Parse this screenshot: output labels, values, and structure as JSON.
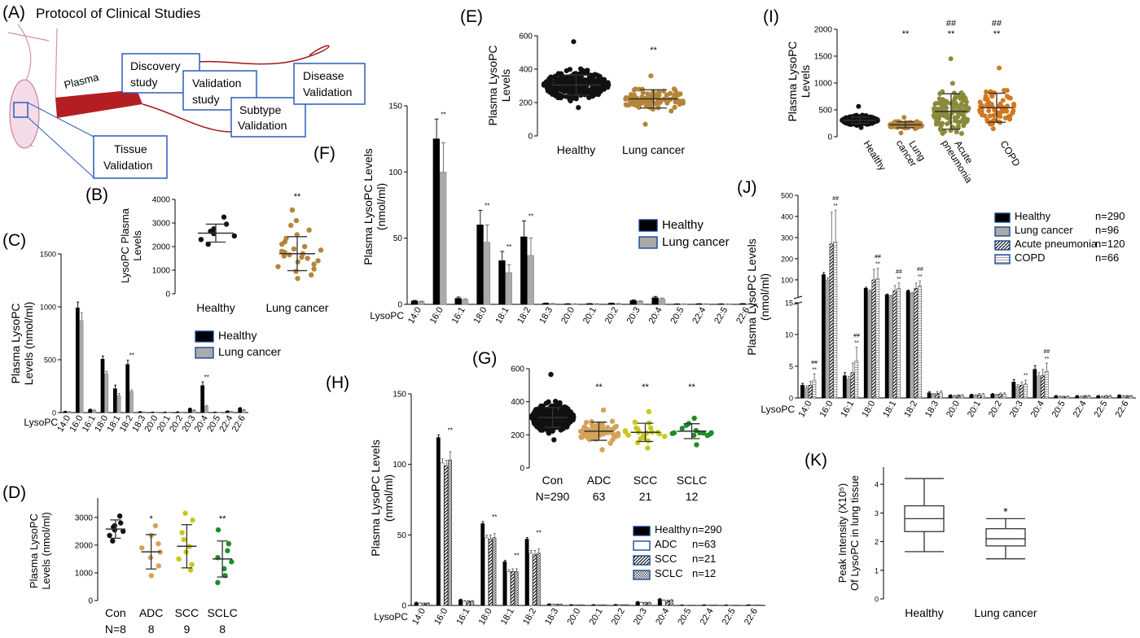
{
  "panels": {
    "A": {
      "label": "(A)",
      "title": "Protocol of Clinical Studies",
      "plasma_label": "Plasma",
      "boxes": {
        "discovery": [
          "Discovery",
          "study"
        ],
        "validation": [
          "Validation",
          "study"
        ],
        "subtype": [
          "Subtype",
          "Validation"
        ],
        "disease": [
          "Disease",
          "Validation"
        ],
        "tissue": [
          "Tissue",
          "Validation"
        ]
      }
    },
    "B": {
      "label": "(B)"
    },
    "C": {
      "label": "(C)"
    },
    "D": {
      "label": "(D)"
    },
    "E": {
      "label": "(E)"
    },
    "F": {
      "label": "(F)"
    },
    "G": {
      "label": "(G)"
    },
    "H": {
      "label": "(H)"
    },
    "I": {
      "label": "(I)"
    },
    "J": {
      "label": "(J)"
    },
    "K": {
      "label": "(K)"
    }
  },
  "colors": {
    "healthy": "#000000",
    "healthy_dot": "#111111",
    "lung_cancer_bar": "#aaaaaa",
    "lung_cancer_dot": "#b5853a",
    "adc": "#d4a25a",
    "scc": "#c8c81a",
    "sclc": "#1e8c2a",
    "pneumonia": "#8a8a3a",
    "copd": "#d2781e",
    "protocol_box": "#2b5fb5",
    "protocol_curve": "#a3161c",
    "vessel": "#b84a6b"
  },
  "chart_data": [
    {
      "panel": "B",
      "type": "scatter",
      "ylabel": "LysoPC Plasma Levels",
      "categories": [
        "Healthy",
        "Lung cancer"
      ],
      "yticks": [
        0,
        1000,
        2000,
        3000,
        4000
      ],
      "ylim": [
        0,
        4000
      ],
      "groups": [
        {
          "mean": 2570,
          "sd": 380,
          "sig": "",
          "points": [
            2100,
            2300,
            2450,
            2550,
            2650,
            2750,
            2950,
            3250
          ]
        },
        {
          "mean": 1700,
          "sd": 720,
          "sig": "**",
          "points": [
            650,
            800,
            950,
            1050,
            1150,
            1250,
            1350,
            1400,
            1500,
            1550,
            1600,
            1650,
            1700,
            1750,
            1800,
            1850,
            1900,
            2000,
            2100,
            2200,
            2350,
            2500,
            2700,
            2900,
            3100,
            3550
          ]
        }
      ]
    },
    {
      "panel": "C",
      "type": "bar",
      "ylabel": "Plasma LysoPC Levels (nmol/ml)",
      "xlabel": "LysoPC",
      "yticks": [
        0,
        500,
        1000,
        1500
      ],
      "ylim": [
        0,
        1500
      ],
      "categories": [
        "14:0",
        "16:0",
        "16:1",
        "18:0",
        "18:1",
        "18:2",
        "18:3",
        "20:0",
        "20:1",
        "20:2",
        "20:3",
        "20:4",
        "20:5",
        "22:4",
        "22:6"
      ],
      "series": [
        {
          "name": "Healthy",
          "values": [
            10,
            990,
            28,
            505,
            225,
            455,
            8,
            4,
            4,
            6,
            38,
            255,
            4,
            14,
            42
          ],
          "err": [
            3,
            55,
            5,
            30,
            35,
            40,
            2,
            1,
            1,
            2,
            5,
            35,
            1,
            3,
            6
          ]
        },
        {
          "name": "Lung cancer",
          "values": [
            8,
            870,
            22,
            365,
            160,
            200,
            5,
            3,
            3,
            4,
            22,
            60,
            3,
            10,
            25
          ],
          "err": [
            2,
            75,
            4,
            25,
            20,
            15,
            1,
            1,
            1,
            1,
            4,
            8,
            1,
            2,
            4
          ]
        }
      ],
      "sig": [
        {
          "i": 5,
          "text": "**"
        },
        {
          "i": 11,
          "text": "**"
        }
      ]
    },
    {
      "panel": "D",
      "type": "scatter",
      "ylabel": "Plasma LysoPC Levels (nmol/ml)",
      "categories": [
        "Con",
        "ADC",
        "SCC",
        "SCLC"
      ],
      "counts": [
        "N=8",
        "8",
        "9",
        "8"
      ],
      "yticks": [
        0,
        1000,
        2000,
        3000
      ],
      "ylim": [
        0,
        3700
      ],
      "groups": [
        {
          "mean": 2580,
          "sd": 330,
          "sig": "",
          "color_key": "healthy_dot",
          "points": [
            2150,
            2350,
            2500,
            2550,
            2650,
            2700,
            2800,
            3050
          ]
        },
        {
          "mean": 1760,
          "sd": 620,
          "sig": "*",
          "color_key": "adc",
          "points": [
            900,
            1250,
            1550,
            1750,
            1900,
            2050,
            2350,
            2700
          ]
        },
        {
          "mean": 1960,
          "sd": 780,
          "sig": "",
          "color_key": "scc",
          "points": [
            1100,
            1300,
            1500,
            1750,
            1950,
            2200,
            2450,
            2900,
            3150
          ]
        },
        {
          "mean": 1500,
          "sd": 650,
          "sig": "**",
          "color_key": "sclc",
          "points": [
            650,
            900,
            1150,
            1400,
            1550,
            1800,
            2050,
            2550
          ]
        }
      ]
    },
    {
      "panel": "E",
      "type": "scatter",
      "ylabel": "Plasma LysoPC Levels",
      "categories": [
        "Healthy",
        "Lung cancer"
      ],
      "yticks": [
        0,
        200,
        400,
        600
      ],
      "ylim": [
        0,
        600
      ],
      "groups": [
        {
          "mean": 305,
          "sd": 60,
          "sig": "",
          "n": 290,
          "min": 170,
          "max": 565
        },
        {
          "mean": 222,
          "sd": 55,
          "sig": "**",
          "n": 96,
          "min": 70,
          "max": 360
        }
      ]
    },
    {
      "panel": "F",
      "type": "bar",
      "ylabel": "Plasma LysoPC Levels (nmol/ml)",
      "xlabel": "LysoPC",
      "yticks": [
        0,
        50,
        100,
        150
      ],
      "ylim": [
        0,
        150
      ],
      "categories": [
        "14:0",
        "16:0",
        "16:1",
        "18:0",
        "18:1",
        "18:2",
        "18:3",
        "20:0",
        "20:1",
        "20:2",
        "20:3",
        "20:4",
        "20:5",
        "22:4",
        "22:5",
        "22:6"
      ],
      "series": [
        {
          "name": "Healthy",
          "values": [
            2.5,
            125,
            4.5,
            60,
            33,
            51,
            0.8,
            0.4,
            0.5,
            0.8,
            2.8,
            5,
            0.3,
            0.4,
            0.3,
            0.5
          ],
          "err": [
            0.5,
            15,
            1,
            11,
            7,
            12,
            0.2,
            0.1,
            0.1,
            0.2,
            0.5,
            1,
            0.1,
            0.1,
            0.1,
            0.1
          ]
        },
        {
          "name": "Lung cancer",
          "values": [
            2,
            100,
            3.5,
            47,
            24,
            37,
            0.6,
            0.3,
            0.4,
            0.6,
            2.2,
            4,
            0.2,
            0.3,
            0.2,
            0.4
          ],
          "err": [
            0.4,
            22,
            0.8,
            13,
            6,
            13,
            0.1,
            0.1,
            0.1,
            0.1,
            0.4,
            0.8,
            0.1,
            0.1,
            0.1,
            0.1
          ]
        }
      ],
      "sig": [
        {
          "i": 1,
          "text": "**"
        },
        {
          "i": 3,
          "text": "**"
        },
        {
          "i": 4,
          "text": "**"
        },
        {
          "i": 5,
          "text": "**"
        }
      ]
    },
    {
      "panel": "G",
      "type": "scatter",
      "categories": [
        "Con",
        "ADC",
        "SCC",
        "SCLC"
      ],
      "counts": [
        "N=290",
        "63",
        "21",
        "12"
      ],
      "yticks": [
        0,
        200,
        400,
        600
      ],
      "ylim": [
        0,
        600
      ],
      "groups": [
        {
          "mean": 305,
          "sd": 60,
          "sig": "",
          "n": 290,
          "min": 170,
          "max": 565,
          "color_key": "healthy_dot"
        },
        {
          "mean": 222,
          "sd": 55,
          "sig": "**",
          "n": 63,
          "min": 110,
          "max": 350,
          "color_key": "adc"
        },
        {
          "mean": 215,
          "sd": 55,
          "sig": "**",
          "n": 21,
          "min": 120,
          "max": 340,
          "color_key": "scc"
        },
        {
          "mean": 222,
          "sd": 45,
          "sig": "**",
          "n": 12,
          "min": 140,
          "max": 300,
          "color_key": "sclc"
        }
      ]
    },
    {
      "panel": "H",
      "type": "bar",
      "ylabel": "Plasma LysoPC Levels (nmol/ml)",
      "xlabel": "LysoPC",
      "yticks": [
        0,
        50,
        100,
        150
      ],
      "ylim": [
        0,
        150
      ],
      "categories": [
        "14:0",
        "16:0",
        "16:1",
        "18:0",
        "18:1",
        "18:2",
        "18:3",
        "20:0",
        "20:1",
        "20:2",
        "20:3",
        "20:4",
        "20:5",
        "22:4",
        "22:5",
        "22:6"
      ],
      "series": [
        {
          "name": "Healthy",
          "count": "n=290",
          "values": [
            2,
            119,
            4,
            58,
            31,
            47,
            1,
            0.5,
            0.5,
            0.6,
            2.5,
            4.5,
            0.3,
            0.4,
            0.3,
            0.4
          ],
          "err": [
            0.3,
            2,
            0.5,
            1.5,
            1,
            1.2,
            0.2,
            0.1,
            0.1,
            0.1,
            0.3,
            0.5,
            0.1,
            0.1,
            0.1,
            0.1
          ]
        },
        {
          "name": "ADC",
          "count": "n=63",
          "values": [
            1.6,
            101,
            3,
            48,
            24,
            37,
            0.8,
            0.4,
            0.4,
            0.5,
            2,
            3.5,
            0.2,
            0.3,
            0.2,
            0.3
          ],
          "err": [
            0.3,
            3,
            0.4,
            2,
            1.5,
            2,
            0.2,
            0.1,
            0.1,
            0.1,
            0.3,
            0.5,
            0.1,
            0.1,
            0.1,
            0.1
          ]
        },
        {
          "name": "SCC",
          "count": "n=21",
          "values": [
            1.5,
            99,
            3,
            47,
            24,
            36,
            0.8,
            0.4,
            0.4,
            0.5,
            2,
            3.3,
            0.2,
            0.3,
            0.2,
            0.3
          ],
          "err": [
            0.3,
            4,
            0.4,
            3,
            2,
            3,
            0.2,
            0.1,
            0.1,
            0.1,
            0.3,
            0.6,
            0.1,
            0.1,
            0.1,
            0.1
          ]
        },
        {
          "name": "SCLC",
          "count": "n=12",
          "values": [
            1.6,
            103,
            3,
            48,
            24,
            37,
            0.8,
            0.4,
            0.4,
            0.5,
            2,
            3.6,
            0.2,
            0.3,
            0.2,
            0.3
          ],
          "err": [
            0.3,
            6,
            0.5,
            3,
            2,
            3,
            0.2,
            0.1,
            0.1,
            0.1,
            0.3,
            0.6,
            0.1,
            0.1,
            0.1,
            0.1
          ]
        }
      ],
      "sig": [
        {
          "i": 1,
          "text": "**"
        },
        {
          "i": 3,
          "text": "**"
        },
        {
          "i": 4,
          "text": "**"
        },
        {
          "i": 5,
          "text": "**"
        }
      ]
    },
    {
      "panel": "I",
      "type": "scatter",
      "ylabel": "Plasma LysoPC Levels",
      "categories": [
        "Healthy",
        "Lung cancer",
        "Acute pneumonia",
        "COPD"
      ],
      "yticks": [
        0,
        500,
        1000,
        1500,
        2000
      ],
      "ylim": [
        0,
        2000
      ],
      "groups": [
        {
          "mean": 305,
          "sd": 60,
          "sig": "",
          "sig2": "",
          "n": 290,
          "min": 170,
          "max": 565,
          "color_key": "healthy_dot"
        },
        {
          "mean": 222,
          "sd": 55,
          "sig": "**",
          "sig2": "",
          "n": 96,
          "min": 70,
          "max": 360,
          "color_key": "lung_cancer_dot"
        },
        {
          "mean": 470,
          "sd": 330,
          "sig": "**",
          "sig2": "##",
          "n": 120,
          "min": 60,
          "max": 1450,
          "color_key": "pneumonia"
        },
        {
          "mean": 540,
          "sd": 270,
          "sig": "**",
          "sig2": "##",
          "n": 66,
          "min": 150,
          "max": 1280,
          "color_key": "copd"
        }
      ]
    },
    {
      "panel": "J",
      "type": "bar",
      "ylabel": "Plasma LysoPC Levels (nmol/ml)",
      "xlabel": "LysoPC",
      "yticks_low": [
        0,
        5,
        10,
        15
      ],
      "yticks_high": [
        100,
        200,
        300,
        400,
        500
      ],
      "categories": [
        "14:0",
        "16:0",
        "16:1",
        "18:0",
        "18:1",
        "18:2",
        "18:3",
        "20:0",
        "20:1",
        "20:2",
        "20:3",
        "20:4",
        "20:5",
        "22:4",
        "22:5",
        "22:6"
      ],
      "series": [
        {
          "name": "Healthy",
          "count": "n=290",
          "values": [
            2,
            125,
            3.5,
            60,
            30,
            48,
            0.8,
            0.4,
            0.5,
            0.6,
            2.5,
            4.5,
            0.3,
            0.3,
            0.3,
            0.4
          ],
          "err": [
            0.3,
            10,
            0.5,
            5,
            3,
            4,
            0.2,
            0.1,
            0.1,
            0.1,
            0.4,
            0.6,
            0.1,
            0.1,
            0.1,
            0.1
          ]
        },
        {
          "name": "Lung cancer",
          "count": "n=96",
          "values": [
            1.6,
            100,
            3,
            47,
            24,
            37,
            0.6,
            0.3,
            0.4,
            0.5,
            1.8,
            3.5,
            0.2,
            0.2,
            0.2,
            0.3
          ],
          "err": [
            0.3,
            10,
            0.4,
            5,
            3,
            4,
            0.1,
            0.1,
            0.1,
            0.1,
            0.3,
            0.5,
            0.1,
            0.1,
            0.1,
            0.1
          ]
        },
        {
          "name": "Acute pneumonia",
          "count": "n=120",
          "values": [
            2,
            270,
            4,
            100,
            48,
            60,
            0.7,
            0.4,
            0.5,
            0.6,
            2,
            3.5,
            0.2,
            0.3,
            0.3,
            0.3
          ],
          "err": [
            0.6,
            150,
            1.5,
            50,
            25,
            25,
            0.3,
            0.1,
            0.2,
            0.2,
            0.5,
            1,
            0.1,
            0.1,
            0.1,
            0.1
          ]
        },
        {
          "name": "COPD",
          "count": "n=66",
          "values": [
            2.8,
            280,
            5.8,
            105,
            60,
            70,
            0.8,
            0.4,
            0.5,
            0.6,
            2.2,
            4.2,
            0.2,
            0.3,
            0.3,
            0.3
          ],
          "err": [
            1,
            150,
            2.2,
            50,
            25,
            25,
            0.3,
            0.1,
            0.2,
            0.2,
            0.6,
            1.3,
            0.1,
            0.1,
            0.1,
            0.1
          ]
        }
      ],
      "sig": [
        {
          "i": 0,
          "text": "**",
          "text2": "##"
        },
        {
          "i": 1,
          "text": "**",
          "text2": "##"
        },
        {
          "i": 2,
          "text": "**",
          "text2": "##"
        },
        {
          "i": 3,
          "text": "**",
          "text2": "##"
        },
        {
          "i": 4,
          "text": "**",
          "text2": "##"
        },
        {
          "i": 5,
          "text": "**",
          "text2": "##"
        },
        {
          "i": 10,
          "text": "**",
          "text2": ""
        },
        {
          "i": 11,
          "text": "**",
          "text2": "##"
        }
      ]
    },
    {
      "panel": "K",
      "type": "box",
      "ylabel": "Peak Intensity (X10⁵) Of LysoPC in lung tissue",
      "categories": [
        "Healthy",
        "Lung cancer"
      ],
      "yticks": [
        0,
        1,
        2,
        3,
        4
      ],
      "ylim": [
        0,
        4.6
      ],
      "boxes": [
        {
          "min": 1.65,
          "q1": 2.35,
          "median": 2.8,
          "q3": 3.25,
          "max": 4.2,
          "sig": ""
        },
        {
          "min": 1.4,
          "q1": 1.85,
          "median": 2.1,
          "q3": 2.45,
          "max": 2.8,
          "sig": "*"
        }
      ]
    }
  ]
}
